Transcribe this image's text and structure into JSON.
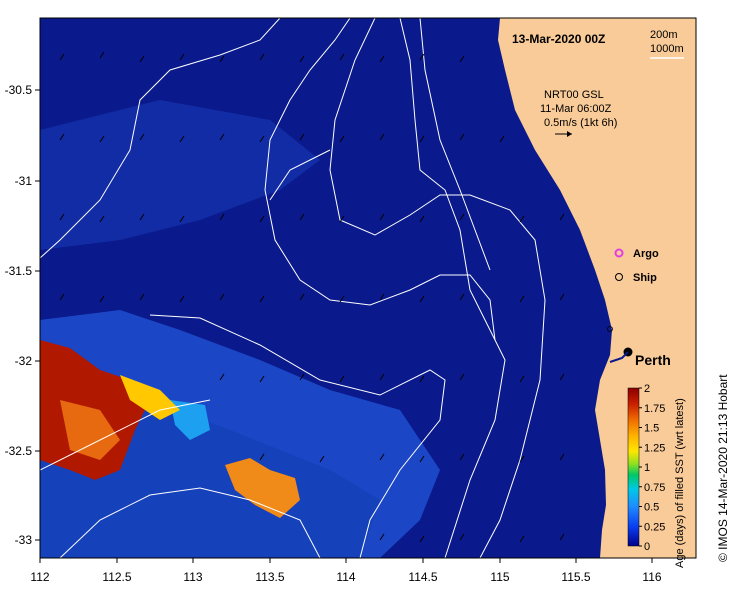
{
  "map": {
    "title": "13-Mar-2020 00Z",
    "depth_legend": [
      "200m",
      "1000m"
    ],
    "current": {
      "source": "NRT00 GSL",
      "time": "11-Mar 06:00Z",
      "scale": "0.5m/s (1kt 6h)"
    },
    "markers": [
      {
        "symbol": "argo-marker",
        "label": "Argo",
        "color": "#e040e0"
      },
      {
        "symbol": "ship-marker",
        "label": "Ship",
        "color": "#000000"
      }
    ],
    "city": "Perth",
    "x_ticks": [
      "112",
      "112.5",
      "113",
      "113.5",
      "114",
      "114.5",
      "115",
      "115.5",
      "116"
    ],
    "y_ticks": [
      "-30.5",
      "-31",
      "-31.5",
      "-32",
      "-32.5",
      "-33"
    ],
    "colorbar": {
      "label": "Age (days) of filled SST (wrt latest)",
      "ticks": [
        "0",
        "0.25",
        "0.5",
        "0.75",
        "1",
        "1.25",
        "1.5",
        "1.75",
        "2"
      ],
      "min": 0,
      "max": 2
    },
    "credit": "© IMOS 14-Mar-2020 21:13 Hobart"
  },
  "colors": {
    "ocean": "#0a1a8c",
    "land": "#f9cb98",
    "contour": "#ffffff"
  }
}
